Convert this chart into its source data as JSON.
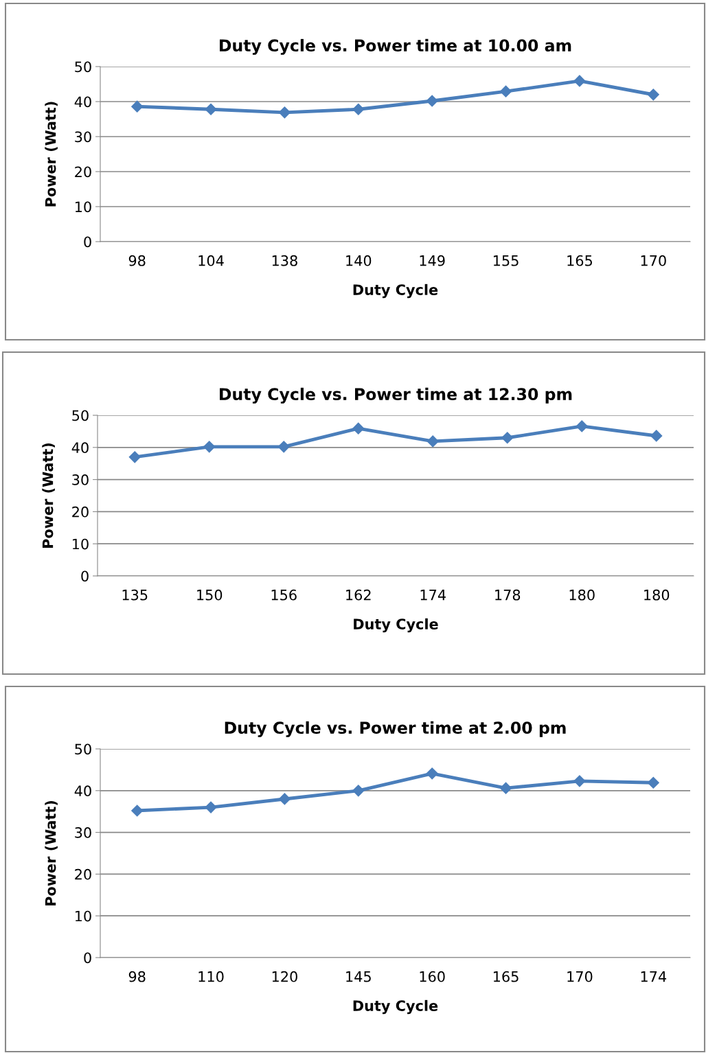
{
  "chart_data": [
    {
      "type": "line",
      "title": "Duty Cycle vs. Power time at 10.00 am",
      "xlabel": "Duty Cycle",
      "ylabel": "Power (Watt)",
      "categories": [
        "98",
        "104",
        "138",
        "140",
        "149",
        "155",
        "165",
        "170"
      ],
      "series": [
        {
          "color": "#4a7ebb",
          "values": [
            38.6,
            37.8,
            36.9,
            37.8,
            40.2,
            42.9,
            45.9,
            42.0
          ]
        }
      ],
      "ylim": [
        0,
        50
      ],
      "yticks": [
        0,
        10,
        20,
        30,
        40,
        50
      ],
      "grid": "y",
      "marker": "diamond",
      "line_style": "solid"
    },
    {
      "type": "line",
      "title": "Duty Cycle vs. Power time at 12.30 pm",
      "xlabel": "Duty Cycle",
      "ylabel": "Power (Watt)",
      "categories": [
        "135",
        "150",
        "156",
        "162",
        "174",
        "178",
        "180",
        "180"
      ],
      "series": [
        {
          "color": "#4a7ebb",
          "values": [
            37.0,
            40.2,
            40.2,
            45.9,
            41.9,
            43.0,
            46.6,
            43.6
          ]
        }
      ],
      "ylim": [
        0,
        50
      ],
      "yticks": [
        0,
        10,
        20,
        30,
        40,
        50
      ],
      "grid": "y",
      "marker": "diamond",
      "line_style": "solid"
    },
    {
      "type": "line",
      "title": "Duty Cycle vs. Power time at 2.00 pm",
      "xlabel": "Duty Cycle",
      "ylabel": "Power (Watt)",
      "categories": [
        "98",
        "110",
        "120",
        "145",
        "160",
        "165",
        "170",
        "174"
      ],
      "series": [
        {
          "color": "#4a7ebb",
          "values": [
            35.2,
            36.0,
            38.0,
            40.0,
            44.1,
            40.6,
            42.3,
            41.9
          ]
        }
      ],
      "ylim": [
        0,
        50
      ],
      "yticks": [
        0,
        10,
        20,
        30,
        40,
        50
      ],
      "grid": "y",
      "marker": "diamond",
      "line_style": "solid"
    }
  ]
}
